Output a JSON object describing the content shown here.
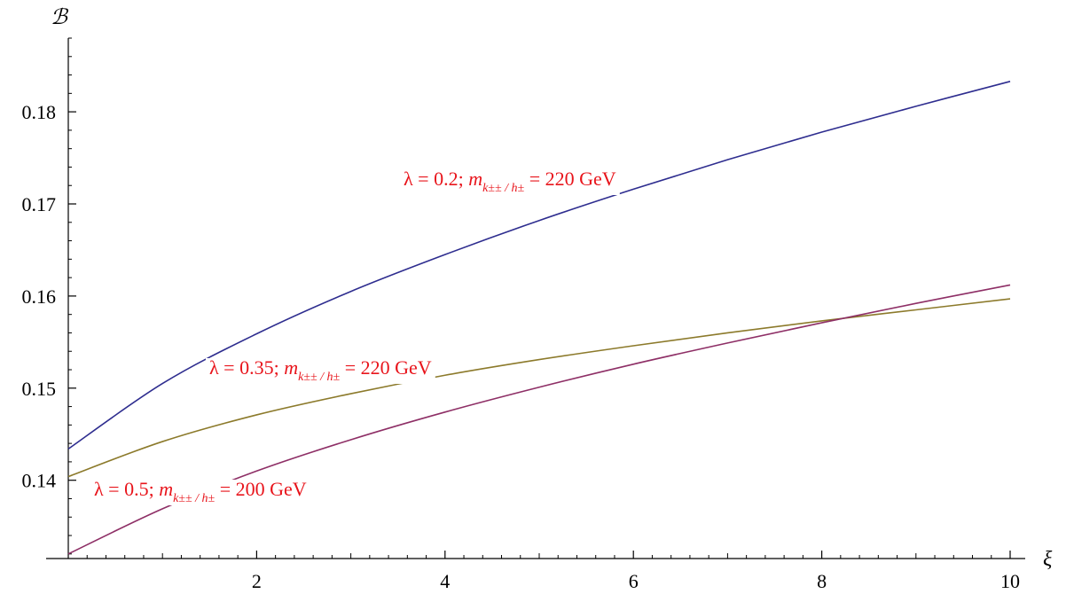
{
  "chart_data": {
    "type": "line",
    "xlabel": "ξ",
    "ylabel": "ℬ",
    "xlim": [
      0,
      10
    ],
    "ylim": [
      0.1315,
      0.188
    ],
    "xticks": [
      2,
      4,
      6,
      8,
      10
    ],
    "xtick_labels": [
      "2",
      "4",
      "6",
      "8",
      "10"
    ],
    "yticks": [
      0.14,
      0.15,
      0.16,
      0.17,
      0.18
    ],
    "ytick_labels": [
      "0.14",
      "0.15",
      "0.16",
      "0.17",
      "0.18"
    ],
    "grid": false,
    "series": [
      {
        "color": "#2e2d8f",
        "x": [
          0,
          1,
          2,
          3,
          4,
          5,
          6,
          7,
          8,
          9,
          10
        ],
        "y": [
          0.1434,
          0.1505,
          0.1559,
          0.1605,
          0.1645,
          0.1682,
          0.1716,
          0.1748,
          0.1778,
          0.1806,
          0.1833
        ]
      },
      {
        "color": "#8c7a2b",
        "x": [
          0,
          1,
          2,
          3,
          4,
          5,
          6,
          7,
          8,
          9,
          10
        ],
        "y": [
          0.1404,
          0.1442,
          0.1471,
          0.1494,
          0.1514,
          0.1531,
          0.1546,
          0.156,
          0.1573,
          0.1585,
          0.1597
        ]
      },
      {
        "color": "#8e2f66",
        "x": [
          0,
          1,
          2,
          3,
          4,
          5,
          6,
          7,
          8,
          9,
          10
        ],
        "y": [
          0.132,
          0.1369,
          0.141,
          0.1444,
          0.1474,
          0.1501,
          0.1526,
          0.1549,
          0.1571,
          0.1592,
          0.1612
        ]
      }
    ],
    "annotations": [
      {
        "series": 0,
        "lambda": "λ = 0.2; ",
        "m": "m",
        "sub": "k±± / h±",
        "rest": " = 220 GeV"
      },
      {
        "series": 1,
        "lambda": "λ = 0.35; ",
        "m": "m",
        "sub": "k±± / h±",
        "rest": " = 220 GeV"
      },
      {
        "series": 2,
        "lambda": "λ = 0.5; ",
        "m": "m",
        "sub": "k±± / h±",
        "rest": " = 200 GeV"
      }
    ],
    "annotation_color": "#e8141b"
  }
}
